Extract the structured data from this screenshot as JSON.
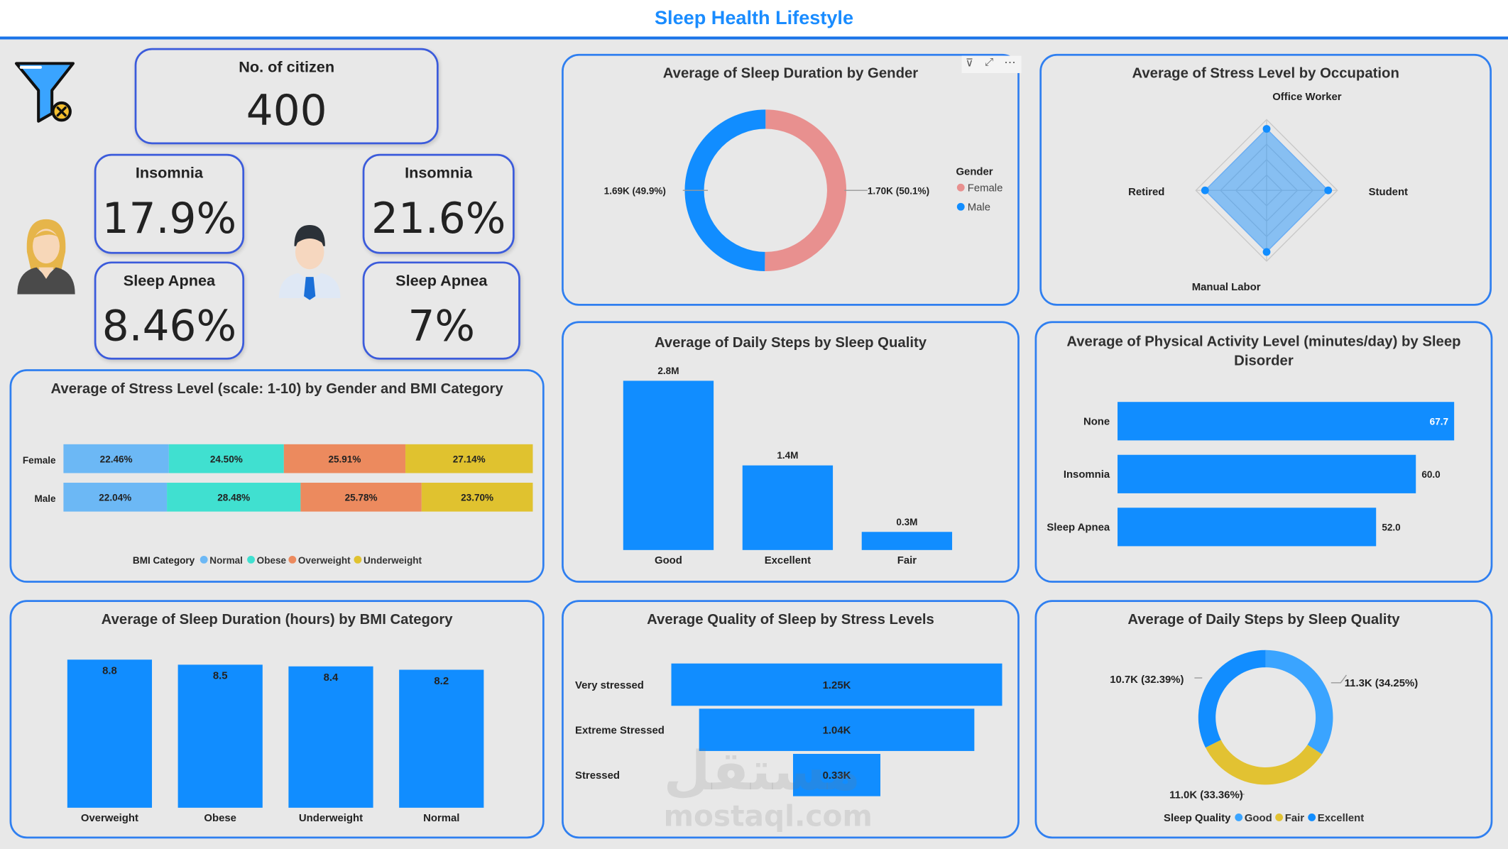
{
  "page": {
    "title": "Sleep Health Lifestyle"
  },
  "icons": {
    "filter": "filter-clear-icon",
    "female": "female-avatar-icon",
    "male": "male-avatar-icon"
  },
  "colors": {
    "accent": "#1a8cff",
    "border": "#2f7ff0",
    "blue": "#118dff",
    "pink": "#e8908f",
    "normal": "#6cb8f5",
    "obese": "#40e0d0",
    "overweight": "#ec8a5e",
    "underweight": "#e0c22f",
    "yellow": "#e2c232",
    "lightblue": "#3aa4ff"
  },
  "kpis": {
    "citizens": {
      "label": "No. of citizen",
      "value": "400"
    },
    "female_insomnia": {
      "label": "Insomnia",
      "value": "17.9%"
    },
    "female_apnea": {
      "label": "Sleep Apnea",
      "value": "8.46%"
    },
    "male_insomnia": {
      "label": "Insomnia",
      "value": "21.6%"
    },
    "male_apnea": {
      "label": "Sleep Apnea",
      "value": "7%"
    }
  },
  "chart_data": [
    {
      "id": "sleep_duration_gender",
      "type": "pie",
      "title": "Average of Sleep Duration by Gender",
      "legend_title": "Gender",
      "labels": [
        "Female",
        "Male"
      ],
      "values": [
        1.7,
        1.69
      ],
      "data_labels": [
        "1.70K (50.1%)",
        "1.69K (49.9%)"
      ],
      "colors": [
        "#e8908f",
        "#118dff"
      ],
      "legend": "right"
    },
    {
      "id": "stress_occupation",
      "type": "radar",
      "title": "Average of Stress Level by Occupation",
      "categories": [
        "Office Worker",
        "Student",
        "Manual Labor",
        "Retired"
      ],
      "values": [
        1,
        1,
        1,
        1
      ]
    },
    {
      "id": "stress_gender_bmi",
      "type": "bar",
      "orientation": "horizontal-stacked-100",
      "title": "Average of Stress Level (scale: 1-10) by Gender and BMI Category",
      "legend_title": "BMI Category",
      "categories": [
        "Female",
        "Male"
      ],
      "series": [
        {
          "name": "Normal",
          "values": [
            22.46,
            22.04
          ],
          "labels": [
            "22.46%",
            "22.04%"
          ],
          "color": "#6cb8f5"
        },
        {
          "name": "Obese",
          "values": [
            24.5,
            28.48
          ],
          "labels": [
            "24.50%",
            "28.48%"
          ],
          "color": "#40e0d0"
        },
        {
          "name": "Overweight",
          "values": [
            25.91,
            25.78
          ],
          "labels": [
            "25.91%",
            "25.78%"
          ],
          "color": "#ec8a5e"
        },
        {
          "name": "Underweight",
          "values": [
            27.14,
            23.7
          ],
          "labels": [
            "27.14%",
            "23.70%"
          ],
          "color": "#e0c22f"
        }
      ],
      "legend": "bottom"
    },
    {
      "id": "steps_quality",
      "type": "bar",
      "title": "Average of Daily Steps by Sleep Quality",
      "categories": [
        "Good",
        "Excellent",
        "Fair"
      ],
      "values": [
        2.8,
        1.4,
        0.3
      ],
      "data_labels": [
        "2.8M",
        "1.4M",
        "0.3M"
      ],
      "ylim": [
        0,
        2.8
      ]
    },
    {
      "id": "activity_disorder",
      "type": "bar",
      "orientation": "horizontal",
      "title": "Average of Physical Activity Level (minutes/day) by Sleep Disorder",
      "categories": [
        "None",
        "Insomnia",
        "Sleep Apnea"
      ],
      "values": [
        67.7,
        60.0,
        52.0
      ],
      "data_labels": [
        "67.7",
        "60.0",
        "52.0"
      ],
      "xlim": [
        0,
        67.7
      ]
    },
    {
      "id": "duration_bmi",
      "type": "bar",
      "title": "Average of Sleep Duration (hours) by BMI Category",
      "categories": [
        "Overweight",
        "Obese",
        "Underweight",
        "Normal"
      ],
      "values": [
        8.8,
        8.5,
        8.4,
        8.2
      ],
      "data_labels": [
        "8.8",
        "8.5",
        "8.4",
        "8.2"
      ],
      "ylim": [
        0,
        8.8
      ]
    },
    {
      "id": "quality_stress",
      "type": "bar",
      "orientation": "horizontal-funnel",
      "title": "Average Quality of Sleep by Stress Levels",
      "categories": [
        "Very stressed",
        "Extreme Stressed",
        "Stressed"
      ],
      "values": [
        1.25,
        1.04,
        0.33
      ],
      "data_labels": [
        "1.25K",
        "1.04K",
        "0.33K"
      ]
    },
    {
      "id": "steps_quality_donut",
      "type": "pie",
      "title": "Average of Daily Steps by Sleep Quality",
      "legend_title": "Sleep Quality",
      "labels": [
        "Good",
        "Fair",
        "Excellent"
      ],
      "values": [
        11.3,
        11.0,
        10.7
      ],
      "data_labels": [
        "11.3K (34.25%)",
        "11.0K (33.36%)",
        "10.7K (32.39%)"
      ],
      "colors": [
        "#3aa4ff",
        "#e2c232",
        "#118dff"
      ],
      "legend": "bottom"
    }
  ],
  "watermark": {
    "arabic": "مستقل",
    "domain": "mostaql.com"
  }
}
